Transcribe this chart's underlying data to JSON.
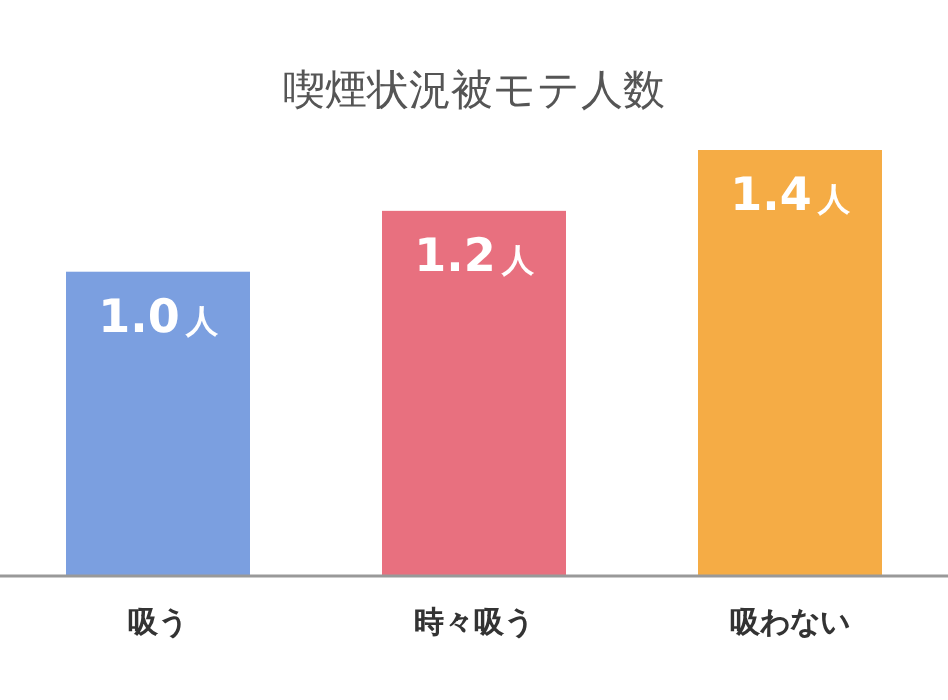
{
  "chart_data": {
    "type": "bar",
    "title": "喫煙状況被モテ人数",
    "categories": [
      "吸う",
      "時々吸う",
      "吸わない"
    ],
    "values": [
      1.0,
      1.2,
      1.4
    ],
    "colors": [
      "#7b9fe0",
      "#e8707f",
      "#f5ac45"
    ],
    "value_labels": [
      "1.0人",
      "1.2人",
      "1.4人"
    ]
  }
}
